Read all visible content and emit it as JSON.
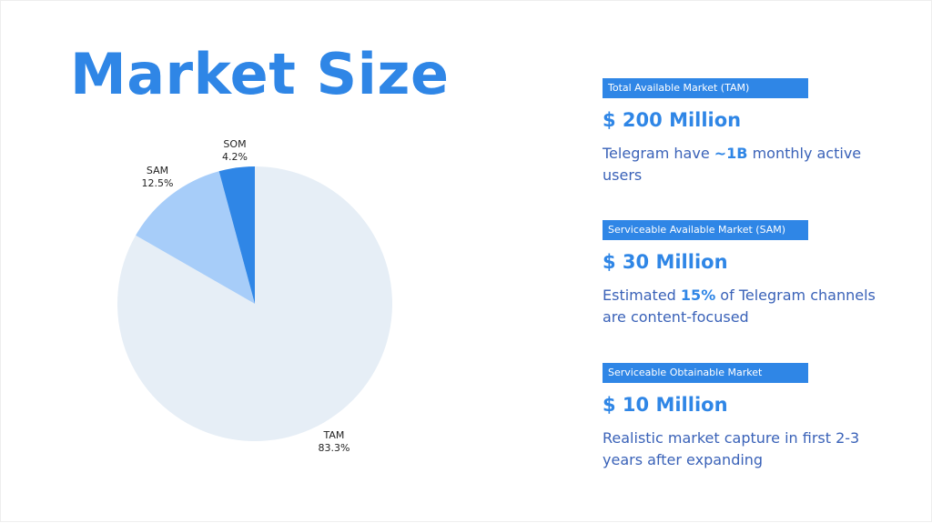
{
  "title": "Market Size",
  "chart_data": {
    "type": "pie",
    "title": "",
    "categories": [
      "TAM",
      "SAM",
      "SOM"
    ],
    "values": [
      83.3,
      12.5,
      4.2
    ],
    "value_labels": [
      "83.3%",
      "12.5%",
      "4.2%"
    ],
    "colors": [
      "#e6eef6",
      "#a7cdf9",
      "#2f86e6"
    ],
    "start_angle_deg": 0,
    "direction": "counterclockwise-from-top"
  },
  "markets": [
    {
      "tag": "Total Available Market (TAM)",
      "value": "$ 200 Million",
      "desc_pre": "Telegram have ",
      "desc_bold": "~1B",
      "desc_post": " monthly active users"
    },
    {
      "tag": "Serviceable Available Market (SAM)",
      "value": "$ 30 Million",
      "desc_pre": "Estimated ",
      "desc_bold": "15%",
      "desc_post": " of Telegram channels are content-focused"
    },
    {
      "tag": "Serviceable Obtainable Market",
      "value": "$ 10 Million",
      "desc_pre": "Realistic market capture in first 2-3 years after expanding",
      "desc_bold": "",
      "desc_post": ""
    }
  ]
}
